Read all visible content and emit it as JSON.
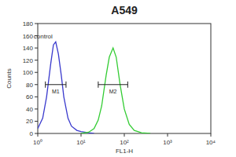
{
  "chart_data": {
    "type": "line",
    "title": "A549",
    "x_label": "FL1-H",
    "y_label": "Counts",
    "log": "x",
    "xlim": [
      1,
      10000
    ],
    "xticks": [
      {
        "value": 1,
        "label": "10⁰"
      },
      {
        "value": 10,
        "label": "10¹"
      },
      {
        "value": 100,
        "label": "10²"
      },
      {
        "value": 1000,
        "label": "10³"
      },
      {
        "value": 10000,
        "label": "10⁴"
      }
    ],
    "ylim": [
      0,
      180
    ],
    "yticks": [
      0,
      20,
      40,
      60,
      80,
      100,
      120,
      140,
      160,
      180
    ],
    "series": [
      {
        "name": "control",
        "color": "#3a3acd",
        "x": [
          1,
          1.3,
          1.6,
          2,
          2.3,
          2.6,
          3,
          3.5,
          4,
          5,
          6,
          8,
          10,
          15,
          20
        ],
        "values": [
          8,
          25,
          60,
          115,
          145,
          150,
          130,
          95,
          60,
          25,
          12,
          5,
          3,
          1,
          0
        ]
      },
      {
        "color": "#33cc33",
        "x": [
          10,
          15,
          20,
          25,
          30,
          38,
          45,
          55,
          65,
          80,
          100,
          130,
          170,
          250,
          400
        ],
        "values": [
          0,
          2,
          8,
          22,
          45,
          95,
          125,
          140,
          125,
          80,
          40,
          15,
          5,
          1,
          0
        ]
      }
    ],
    "annotations": [
      {
        "text": "M1",
        "x": [
          1.5,
          4.5
        ],
        "y": 80
      },
      {
        "text": "M2",
        "x": [
          25,
          120
        ],
        "y": 80
      }
    ]
  }
}
